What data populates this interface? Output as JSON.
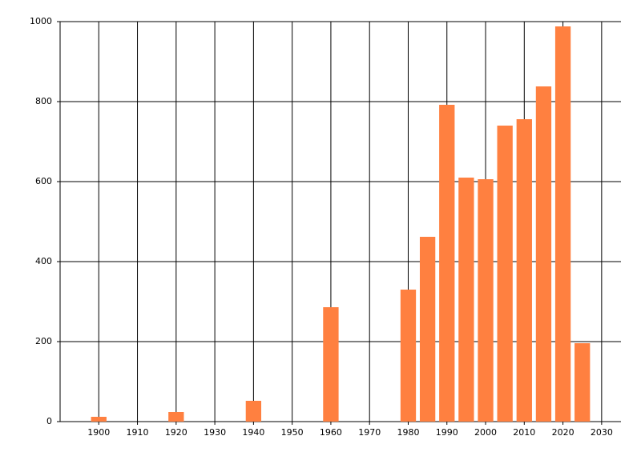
{
  "chart_data": {
    "type": "bar",
    "x": [
      1900,
      1920,
      1940,
      1960,
      1980,
      1985,
      1990,
      1995,
      2000,
      2005,
      2010,
      2015,
      2020,
      2025
    ],
    "values": [
      12,
      24,
      52,
      286,
      330,
      462,
      792,
      610,
      606,
      740,
      756,
      838,
      988,
      196
    ],
    "color": "#ff8040",
    "xlim": [
      1890,
      2035
    ],
    "xticks": [
      1900,
      1910,
      1920,
      1930,
      1940,
      1950,
      1960,
      1970,
      1980,
      1990,
      2000,
      2010,
      2020,
      2030
    ],
    "ylim": [
      0,
      1000
    ],
    "yticks": [
      0,
      200,
      400,
      600,
      800,
      1000
    ],
    "grid": true
  }
}
